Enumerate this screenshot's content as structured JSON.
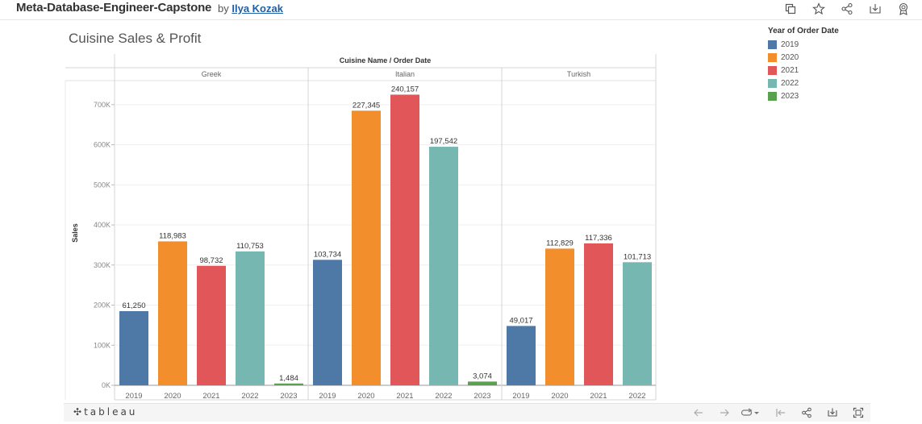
{
  "header": {
    "workbook_title": "Meta-Database-Engineer-Capstone",
    "by_label": "by",
    "author": "Ilya Kozak",
    "icons": [
      "duplicate-icon",
      "favorite-star-icon",
      "share-icon",
      "download-icon",
      "badge-icon"
    ]
  },
  "footer": {
    "logo_text": "tableau",
    "icons": [
      "undo-arrow-icon",
      "redo-arrow-icon",
      "revert-icon",
      "reset-icon",
      "share-icon",
      "download-icon",
      "fullscreen-icon"
    ]
  },
  "legend": {
    "title": "Year of Order Date",
    "items": [
      {
        "label": "2019",
        "color": "#4e79a7"
      },
      {
        "label": "2020",
        "color": "#f28e2b"
      },
      {
        "label": "2021",
        "color": "#e15759"
      },
      {
        "label": "2022",
        "color": "#76b7b2"
      },
      {
        "label": "2023",
        "color": "#59a14f"
      }
    ]
  },
  "chart_data": {
    "type": "bar",
    "title": "Cuisine Sales & Profit",
    "header_label": "Cuisine Name / Order Date",
    "ylabel": "Sales",
    "ylim": [
      0,
      760000
    ],
    "yticks": [
      0,
      100000,
      200000,
      300000,
      400000,
      500000,
      600000,
      700000
    ],
    "ytick_labels": [
      "0K",
      "100K",
      "200K",
      "300K",
      "400K",
      "500K",
      "600K",
      "700K"
    ],
    "grid": true,
    "legend_position": "top-right",
    "panels": [
      {
        "name": "Greek",
        "bars": [
          {
            "year": "2019",
            "sales": 185000,
            "label": "61,250"
          },
          {
            "year": "2020",
            "sales": 359000,
            "label": "118,983"
          },
          {
            "year": "2021",
            "sales": 298000,
            "label": "98,732"
          },
          {
            "year": "2022",
            "sales": 334000,
            "label": "110,753"
          },
          {
            "year": "2023",
            "sales": 4500,
            "label": "1,484"
          }
        ]
      },
      {
        "name": "Italian",
        "bars": [
          {
            "year": "2019",
            "sales": 313000,
            "label": "103,734"
          },
          {
            "year": "2020",
            "sales": 685000,
            "label": "227,345"
          },
          {
            "year": "2021",
            "sales": 725000,
            "label": "240,157"
          },
          {
            "year": "2022",
            "sales": 595000,
            "label": "197,542"
          },
          {
            "year": "2023",
            "sales": 9300,
            "label": "3,074"
          }
        ]
      },
      {
        "name": "Turkish",
        "bars": [
          {
            "year": "2019",
            "sales": 148000,
            "label": "49,017"
          },
          {
            "year": "2020",
            "sales": 341000,
            "label": "112,829"
          },
          {
            "year": "2021",
            "sales": 354000,
            "label": "117,336"
          },
          {
            "year": "2022",
            "sales": 307000,
            "label": "101,713"
          }
        ]
      }
    ]
  }
}
